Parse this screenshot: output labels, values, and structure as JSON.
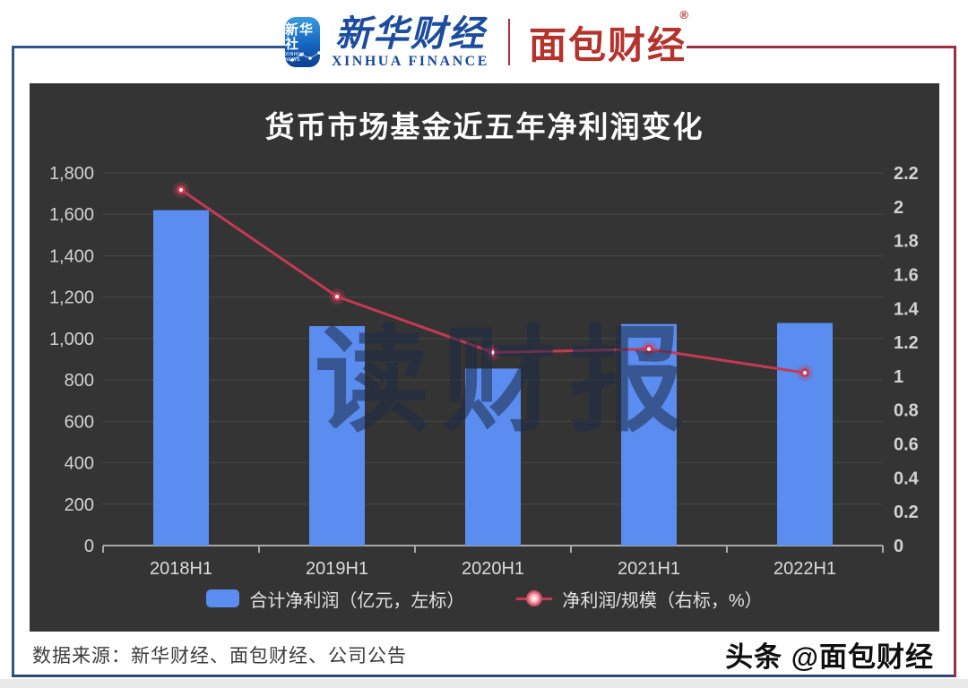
{
  "header": {
    "xinhua_icon": {
      "line1": "新华社",
      "line2": "XINHUA NEWS"
    },
    "xinhua_finance": {
      "cn": "新华财经",
      "en": "XINHUA FINANCE"
    },
    "mianbao_logo": {
      "cn": "面包财经",
      "reg": "®"
    }
  },
  "chart": {
    "title": "货币市场基金近五年净利润变化",
    "watermark": "读财报",
    "legend": [
      {
        "label": "合计净利润（亿元，左标）",
        "marker": "bar-swatch"
      },
      {
        "label": "净利润/规模（右标，%）",
        "marker": "line-dot"
      }
    ]
  },
  "chart_data": {
    "type": "bar",
    "categories": [
      "2018H1",
      "2019H1",
      "2020H1",
      "2021H1",
      "2022H1"
    ],
    "series": [
      {
        "name": "合计净利润（亿元，左标）",
        "type": "bar",
        "axis": "left",
        "values": [
          1620,
          1060,
          855,
          1070,
          1075
        ]
      },
      {
        "name": "净利润/规模（右标，%）",
        "type": "line",
        "axis": "right",
        "values": [
          2.1,
          1.47,
          1.14,
          1.16,
          1.02
        ]
      }
    ],
    "title": "货币市场基金近五年净利润变化",
    "xlabel": "",
    "ylabel_left": "亿元",
    "ylabel_right": "%",
    "left_axis": {
      "min": 0,
      "max": 1800,
      "step": 200,
      "ticks": [
        "0",
        "200",
        "400",
        "600",
        "800",
        "1,000",
        "1,200",
        "1,400",
        "1,600",
        "1,800"
      ]
    },
    "right_axis": {
      "min": 0,
      "max": 2.2,
      "step": 0.2,
      "ticks": [
        "0",
        "0.2",
        "0.4",
        "0.6",
        "0.8",
        "1",
        "1.2",
        "1.4",
        "1.6",
        "1.8",
        "2",
        "2.2"
      ]
    },
    "grid": true,
    "legend_position": "bottom"
  },
  "footer": {
    "source": "数据来源：新华财经、面包财经、公司公告",
    "handle": "头条 @面包财经"
  },
  "colors": {
    "bar": "#5b8cf0",
    "line": "#c43a55",
    "dot_core": "#ffe9ee",
    "panel_bg": "#343434",
    "grid": "#414141",
    "axis_line": "#a8a8a8",
    "tick_text": "#d2d2d2",
    "frame_blue": "#31558a",
    "frame_red": "#9e2f41",
    "logo_blue": "#1b4c9e",
    "logo_red": "#b5332d"
  }
}
